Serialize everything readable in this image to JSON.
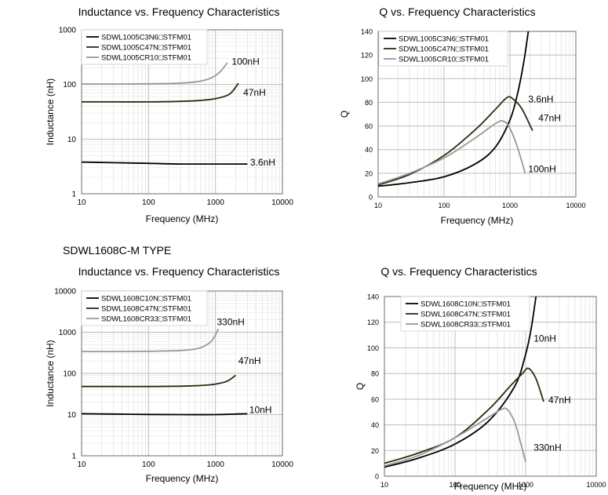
{
  "section_title": "SDWL1608C-M TYPE",
  "chart_data": [
    {
      "type": "line",
      "title": "Inductance vs. Frequency Characteristics",
      "xlabel": "Frequency (MHz)",
      "ylabel": "Inductance (nH)",
      "xscale": "log",
      "yscale": "log",
      "xlim": [
        10,
        10000
      ],
      "ylim": [
        1,
        1000
      ],
      "xticks": [
        "10",
        "100",
        "1000",
        "10000"
      ],
      "yticks": [
        "1",
        "10",
        "100",
        "1000"
      ],
      "grid": true,
      "legend": "top-left",
      "series": [
        {
          "name": "SDWL1005C3N6□STFM01",
          "color": "#000000",
          "x": [
            10,
            30,
            100,
            300,
            1000,
            3000
          ],
          "y": [
            3.8,
            3.7,
            3.6,
            3.5,
            3.5,
            3.5
          ]
        },
        {
          "name": "SDWL1005C47N□STFM01",
          "color": "#2b2d0e",
          "x": [
            10,
            30,
            100,
            300,
            600,
            1000,
            1500,
            1800,
            2200
          ],
          "y": [
            48,
            48,
            48,
            49,
            51,
            55,
            63,
            75,
            105
          ]
        },
        {
          "name": "SDWL1005CR10□STFM01",
          "color": "#999999",
          "x": [
            10,
            30,
            100,
            300,
            600,
            900,
            1200,
            1500
          ],
          "y": [
            102,
            102,
            103,
            106,
            115,
            135,
            175,
            250
          ]
        }
      ],
      "annotations": [
        {
          "text": "100nH",
          "x": 1750,
          "y": 230
        },
        {
          "text": "47nH",
          "x": 2600,
          "y": 62
        },
        {
          "text": "3.6nH",
          "x": 3300,
          "y": 3.3
        }
      ]
    },
    {
      "type": "line",
      "title": "Q vs. Frequency Characteristics",
      "xlabel": "Frequency (MHz)",
      "ylabel": "Q",
      "xscale": "log",
      "yscale": "linear",
      "xlim": [
        10,
        10000
      ],
      "ylim": [
        0,
        140
      ],
      "xticks": [
        "10",
        "100",
        "1000",
        "10000"
      ],
      "yticks": [
        "0",
        "20",
        "40",
        "60",
        "80",
        "100",
        "120",
        "140"
      ],
      "grid": true,
      "legend": "top-left",
      "series": [
        {
          "name": "SDWL1005C3N6□STFM01",
          "color": "#000000",
          "x": [
            10,
            30,
            100,
            300,
            600,
            1000,
            1300,
            1600,
            1900
          ],
          "y": [
            9,
            12,
            17,
            28,
            42,
            65,
            87,
            112,
            140
          ]
        },
        {
          "name": "SDWL1005C47N□STFM01",
          "color": "#2b2d0e",
          "x": [
            10,
            30,
            100,
            300,
            600,
            900,
            1100,
            1500,
            2200
          ],
          "y": [
            10,
            19,
            35,
            57,
            74,
            84,
            83,
            75,
            56
          ]
        },
        {
          "name": "SDWL1005CR10□STFM01",
          "color": "#999999",
          "x": [
            10,
            30,
            100,
            300,
            600,
            800,
            1000,
            1300,
            1700
          ],
          "y": [
            11,
            20,
            33,
            50,
            62,
            64,
            58,
            42,
            20
          ]
        }
      ],
      "annotations": [
        {
          "text": "3.6nH",
          "x": 1900,
          "y": 80
        },
        {
          "text": "47nH",
          "x": 2700,
          "y": 64
        },
        {
          "text": "100nH",
          "x": 1900,
          "y": 21
        }
      ]
    },
    {
      "type": "line",
      "title": "Inductance vs. Frequency Characteristics",
      "xlabel": "Frequency (MHz)",
      "ylabel": "Inductance (nH)",
      "xscale": "log",
      "yscale": "log",
      "xlim": [
        10,
        10000
      ],
      "ylim": [
        1,
        10000
      ],
      "xticks": [
        "10",
        "100",
        "1000",
        "10000"
      ],
      "yticks": [
        "1",
        "10",
        "100",
        "1000",
        "10000"
      ],
      "grid": true,
      "legend": "top-left",
      "series": [
        {
          "name": "SDWL1608C10N□STFM01",
          "color": "#000000",
          "x": [
            10,
            30,
            100,
            300,
            1000,
            3000
          ],
          "y": [
            10.5,
            10.3,
            10.1,
            10,
            10,
            10.5
          ]
        },
        {
          "name": "SDWL1608C47N□STFM01",
          "color": "#2b2d0e",
          "x": [
            10,
            30,
            100,
            300,
            600,
            1000,
            1500,
            2000
          ],
          "y": [
            48,
            48,
            48,
            49,
            51,
            55,
            65,
            90
          ]
        },
        {
          "name": "SDWL1608CR33□STFM01",
          "color": "#999999",
          "x": [
            10,
            30,
            100,
            300,
            500,
            700,
            900,
            1100
          ],
          "y": [
            340,
            340,
            345,
            360,
            390,
            470,
            650,
            1200
          ]
        }
      ],
      "annotations": [
        {
          "text": "330nH",
          "x": 1050,
          "y": 1500
        },
        {
          "text": "47nH",
          "x": 2200,
          "y": 170
        },
        {
          "text": "10nH",
          "x": 3200,
          "y": 11
        }
      ]
    },
    {
      "type": "line",
      "title": "Q vs. Frequency Characteristics",
      "xlabel": "Frequency (MHz)",
      "ylabel": "Q",
      "xscale": "log",
      "yscale": "linear",
      "xlim": [
        10,
        10000
      ],
      "ylim": [
        0,
        140
      ],
      "xticks": [
        "10",
        "100",
        "1000",
        "10000"
      ],
      "yticks": [
        "0",
        "20",
        "40",
        "60",
        "80",
        "100",
        "120",
        "140"
      ],
      "grid": true,
      "legend": "top-left",
      "series": [
        {
          "name": "SDWL1608C10N□STFM01",
          "color": "#000000",
          "x": [
            10,
            30,
            100,
            300,
            700,
            1000,
            1200,
            1400
          ],
          "y": [
            7,
            14,
            25,
            43,
            70,
            95,
            115,
            140
          ]
        },
        {
          "name": "SDWL1608C47N□STFM01",
          "color": "#2b2d0e",
          "x": [
            10,
            30,
            100,
            300,
            600,
            900,
            1100,
            1400,
            1800
          ],
          "y": [
            10,
            18,
            30,
            52,
            70,
            80,
            84,
            76,
            58
          ]
        },
        {
          "name": "SDWL1608CR33□STFM01",
          "color": "#999999",
          "x": [
            10,
            30,
            100,
            300,
            450,
            550,
            700,
            850,
            1000
          ],
          "y": [
            8,
            16,
            30,
            46,
            52,
            52,
            42,
            26,
            11
          ]
        }
      ],
      "annotations": [
        {
          "text": "10nH",
          "x": 1300,
          "y": 105
        },
        {
          "text": "47nH",
          "x": 2100,
          "y": 57
        },
        {
          "text": "330nH",
          "x": 1300,
          "y": 20
        }
      ]
    }
  ]
}
